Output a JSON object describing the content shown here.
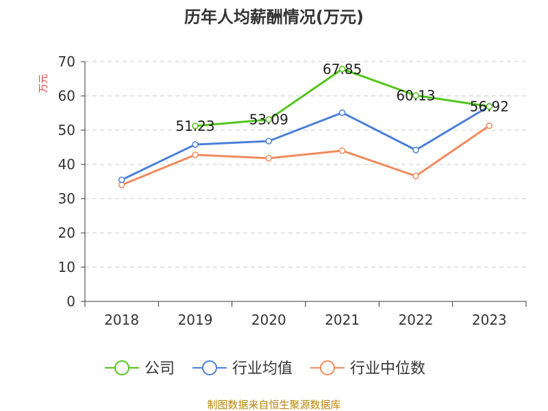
{
  "chart_data": {
    "type": "line",
    "title": "历年人均薪酬情况(万元)",
    "ylabel": "万元",
    "xlabel": "",
    "categories": [
      "2018",
      "2019",
      "2020",
      "2021",
      "2022",
      "2023"
    ],
    "ylim": [
      0,
      70
    ],
    "yticks": [
      0,
      10,
      20,
      30,
      40,
      50,
      60,
      70
    ],
    "grid": true,
    "legend_position": "bottom",
    "series": [
      {
        "name": "公司",
        "color": "#52c41a",
        "values": [
          null,
          51.23,
          53.09,
          67.85,
          60.13,
          56.92
        ],
        "labels": [
          "",
          "51.23",
          "53.09",
          "67.85",
          "60.13",
          "56.92"
        ]
      },
      {
        "name": "行业均值",
        "color": "#4a7fd9",
        "values": [
          35.5,
          45.8,
          46.8,
          55.1,
          44.2,
          57.0
        ]
      },
      {
        "name": "行业中位数",
        "color": "#f08a5d",
        "values": [
          34.0,
          42.8,
          41.8,
          44.0,
          36.6,
          51.3
        ]
      }
    ]
  },
  "source": "制图数据来自恒生聚源数据库"
}
